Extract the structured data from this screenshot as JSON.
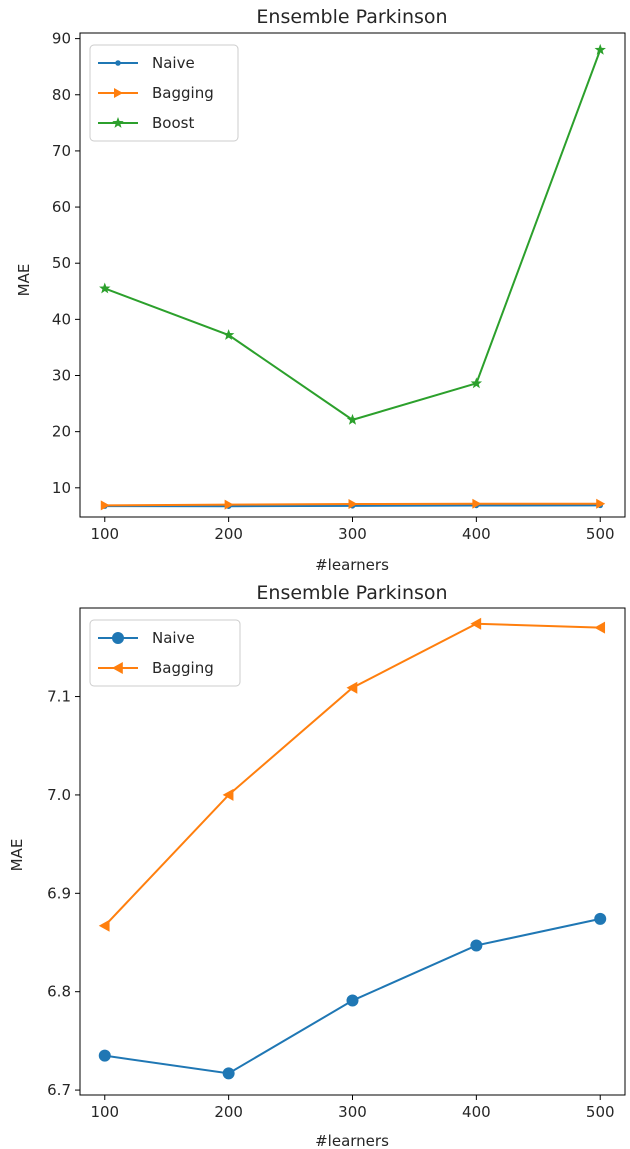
{
  "chart_data": [
    {
      "type": "line",
      "title": "Ensemble Parkinson",
      "xlabel": "#learners",
      "ylabel": "MAE",
      "x": [
        100,
        200,
        300,
        400,
        500
      ],
      "xticks": [
        "100",
        "200",
        "300",
        "400",
        "500"
      ],
      "yticks": [
        "10",
        "20",
        "30",
        "40",
        "50",
        "60",
        "70",
        "80",
        "90"
      ],
      "ylim": [
        4.8,
        91.0
      ],
      "xlim": [
        80,
        520
      ],
      "grid": false,
      "legend_position": "top-left",
      "series": [
        {
          "name": "Naive",
          "values": [
            6.73,
            6.72,
            6.79,
            6.85,
            6.87
          ],
          "color": "#1f77b4",
          "marker": "point"
        },
        {
          "name": "Bagging",
          "values": [
            6.87,
            7.0,
            7.11,
            7.17,
            7.17
          ],
          "color": "#ff7f0e",
          "marker": "triangle-right"
        },
        {
          "name": "Boost",
          "values": [
            45.5,
            37.2,
            22.1,
            28.6,
            88.0
          ],
          "color": "#2ca02c",
          "marker": "star"
        }
      ]
    },
    {
      "type": "line",
      "title": "Ensemble Parkinson",
      "xlabel": "#learners",
      "ylabel": "MAE",
      "x": [
        100,
        200,
        300,
        400,
        500
      ],
      "xticks": [
        "100",
        "200",
        "300",
        "400",
        "500"
      ],
      "yticks": [
        "6.7",
        "6.8",
        "6.9",
        "7.0",
        "7.1"
      ],
      "ytick_values": [
        6.7,
        6.8,
        6.9,
        7.0,
        7.1
      ],
      "ylim": [
        6.695,
        7.19
      ],
      "xlim": [
        80,
        520
      ],
      "grid": false,
      "legend_position": "top-left",
      "series": [
        {
          "name": "Naive",
          "values": [
            6.735,
            6.717,
            6.791,
            6.847,
            6.874
          ],
          "color": "#1f77b4",
          "marker": "circle"
        },
        {
          "name": "Bagging",
          "values": [
            6.867,
            7.0,
            7.109,
            7.174,
            7.17
          ],
          "color": "#ff7f0e",
          "marker": "triangle-left"
        }
      ]
    }
  ]
}
